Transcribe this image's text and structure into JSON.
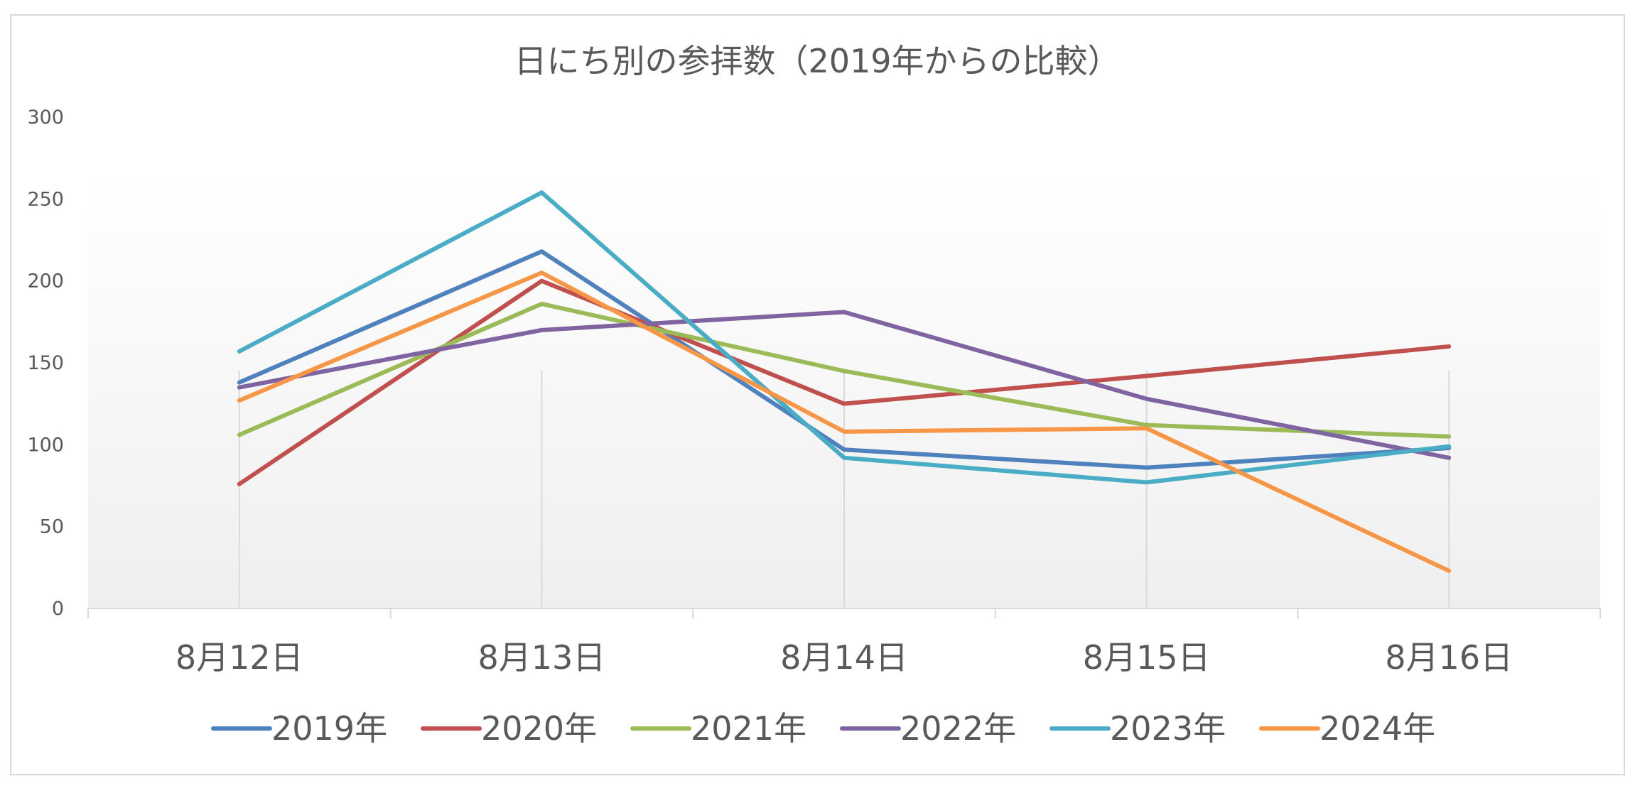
{
  "chart_data": {
    "type": "line",
    "title": "日にち別の参拝数（2019年からの比較）",
    "xlabel": "",
    "ylabel": "",
    "categories": [
      "8月12日",
      "8月13日",
      "8月14日",
      "8月15日",
      "8月16日"
    ],
    "ylim": [
      0,
      300
    ],
    "yticks": [
      "0",
      "50",
      "100",
      "150",
      "200",
      "250",
      "300"
    ],
    "ytick_values": [
      0,
      50,
      100,
      150,
      200,
      250,
      300
    ],
    "grid": "vertical",
    "legend_position": "bottom",
    "series": [
      {
        "name": "2019年",
        "color": "#4f81bd",
        "values": [
          138,
          218,
          97,
          86,
          98
        ]
      },
      {
        "name": "2020年",
        "color": "#c0504d",
        "values": [
          76,
          200,
          125,
          142,
          160
        ]
      },
      {
        "name": "2021年",
        "color": "#9bbb59",
        "values": [
          106,
          186,
          145,
          112,
          105
        ]
      },
      {
        "name": "2022年",
        "color": "#8064a2",
        "values": [
          135,
          170,
          181,
          128,
          92
        ]
      },
      {
        "name": "2023年",
        "color": "#4bacc6",
        "values": [
          157,
          254,
          92,
          77,
          99
        ]
      },
      {
        "name": "2024年",
        "color": "#f79646",
        "values": [
          127,
          205,
          108,
          110,
          23
        ]
      }
    ]
  }
}
